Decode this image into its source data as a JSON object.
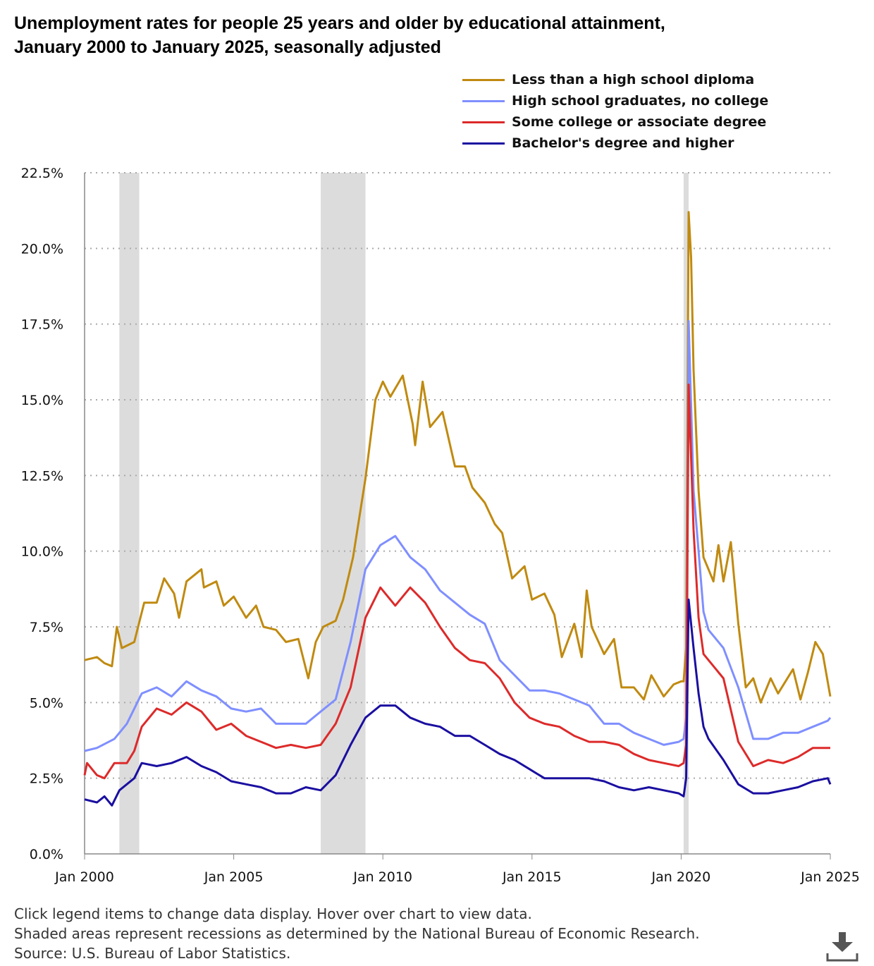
{
  "title_line1": "Unemployment rates for people 25 years and older by educational attainment,",
  "title_line2": "January 2000 to January 2025, seasonally adjusted",
  "notes": [
    "Click legend items to change data display. Hover over chart to view data.",
    "Shaded areas represent recessions as determined by the National Bureau of Economic Research.",
    "Source: U.S. Bureau of Labor Statistics."
  ],
  "download_icon": "download-icon",
  "chart_data": {
    "type": "line",
    "title": "Unemployment rates for people 25 years and older by educational attainment, January 2000 to January 2025, seasonally adjusted",
    "xlabel": "",
    "ylabel": "",
    "xlim": [
      "2000-01",
      "2025-01"
    ],
    "ylim": [
      0,
      22.5
    ],
    "x_ticks": [
      {
        "date": "2000-01",
        "label": "Jan 2000"
      },
      {
        "date": "2005-01",
        "label": "Jan 2005"
      },
      {
        "date": "2010-01",
        "label": "Jan 2010"
      },
      {
        "date": "2015-01",
        "label": "Jan 2015"
      },
      {
        "date": "2020-01",
        "label": "Jan 2020"
      },
      {
        "date": "2025-01",
        "label": "Jan 2025"
      }
    ],
    "y_ticks": [
      {
        "value": 0,
        "label": "0.0%"
      },
      {
        "value": 2.5,
        "label": "2.5%"
      },
      {
        "value": 5,
        "label": "5.0%"
      },
      {
        "value": 7.5,
        "label": "7.5%"
      },
      {
        "value": 10,
        "label": "10.0%"
      },
      {
        "value": 12.5,
        "label": "12.5%"
      },
      {
        "value": 15,
        "label": "15.0%"
      },
      {
        "value": 17.5,
        "label": "17.5%"
      },
      {
        "value": 20,
        "label": "20.0%"
      },
      {
        "value": 22.5,
        "label": "22.5%"
      }
    ],
    "grid": "horizontal dotted",
    "legend_position": "top-right",
    "recessions": [
      {
        "start": "2001-03",
        "end": "2001-11"
      },
      {
        "start": "2007-12",
        "end": "2009-06"
      },
      {
        "start": "2020-02",
        "end": "2020-04"
      }
    ],
    "recession_color": "#dcdcdc",
    "series": [
      {
        "name": "Less than a high school diploma",
        "color": "#c08a10",
        "points": [
          [
            "2000-01",
            6.4
          ],
          [
            "2000-06",
            6.5
          ],
          [
            "2000-09",
            6.3
          ],
          [
            "2000-12",
            6.2
          ],
          [
            "2001-02",
            7.5
          ],
          [
            "2001-04",
            6.8
          ],
          [
            "2001-09",
            7.0
          ],
          [
            "2002-01",
            8.3
          ],
          [
            "2002-06",
            8.3
          ],
          [
            "2002-09",
            9.1
          ],
          [
            "2003-01",
            8.6
          ],
          [
            "2003-03",
            7.8
          ],
          [
            "2003-06",
            9.0
          ],
          [
            "2003-12",
            9.4
          ],
          [
            "2004-01",
            8.8
          ],
          [
            "2004-06",
            9.0
          ],
          [
            "2004-09",
            8.2
          ],
          [
            "2005-01",
            8.5
          ],
          [
            "2005-06",
            7.8
          ],
          [
            "2005-10",
            8.2
          ],
          [
            "2006-01",
            7.5
          ],
          [
            "2006-06",
            7.4
          ],
          [
            "2006-10",
            7.0
          ],
          [
            "2007-03",
            7.1
          ],
          [
            "2007-07",
            5.8
          ],
          [
            "2007-10",
            7.0
          ],
          [
            "2008-01",
            7.5
          ],
          [
            "2008-06",
            7.7
          ],
          [
            "2008-09",
            8.4
          ],
          [
            "2009-01",
            9.8
          ],
          [
            "2009-06",
            12.4
          ],
          [
            "2009-10",
            15.0
          ],
          [
            "2010-01",
            15.6
          ],
          [
            "2010-04",
            15.1
          ],
          [
            "2010-09",
            15.8
          ],
          [
            "2011-01",
            14.2
          ],
          [
            "2011-02",
            13.5
          ],
          [
            "2011-05",
            15.6
          ],
          [
            "2011-08",
            14.1
          ],
          [
            "2012-01",
            14.6
          ],
          [
            "2012-06",
            12.8
          ],
          [
            "2012-10",
            12.8
          ],
          [
            "2013-01",
            12.1
          ],
          [
            "2013-06",
            11.6
          ],
          [
            "2013-10",
            10.9
          ],
          [
            "2014-01",
            10.6
          ],
          [
            "2014-05",
            9.1
          ],
          [
            "2014-10",
            9.5
          ],
          [
            "2015-01",
            8.4
          ],
          [
            "2015-06",
            8.6
          ],
          [
            "2015-10",
            7.9
          ],
          [
            "2016-01",
            6.5
          ],
          [
            "2016-06",
            7.6
          ],
          [
            "2016-09",
            6.5
          ],
          [
            "2016-11",
            8.7
          ],
          [
            "2017-01",
            7.5
          ],
          [
            "2017-06",
            6.6
          ],
          [
            "2017-10",
            7.1
          ],
          [
            "2018-01",
            5.5
          ],
          [
            "2018-06",
            5.5
          ],
          [
            "2018-10",
            5.1
          ],
          [
            "2019-01",
            5.9
          ],
          [
            "2019-06",
            5.2
          ],
          [
            "2019-10",
            5.6
          ],
          [
            "2020-01",
            5.7
          ],
          [
            "2020-02",
            5.7
          ],
          [
            "2020-03",
            6.8
          ],
          [
            "2020-04",
            21.2
          ],
          [
            "2020-05",
            19.7
          ],
          [
            "2020-06",
            16.0
          ],
          [
            "2020-08",
            12.0
          ],
          [
            "2020-10",
            9.8
          ],
          [
            "2020-12",
            9.4
          ],
          [
            "2021-02",
            9.0
          ],
          [
            "2021-04",
            10.2
          ],
          [
            "2021-06",
            9.0
          ],
          [
            "2021-09",
            10.3
          ],
          [
            "2021-12",
            7.6
          ],
          [
            "2022-03",
            5.5
          ],
          [
            "2022-06",
            5.8
          ],
          [
            "2022-09",
            5.0
          ],
          [
            "2023-01",
            5.8
          ],
          [
            "2023-04",
            5.3
          ],
          [
            "2023-07",
            5.7
          ],
          [
            "2023-10",
            6.1
          ],
          [
            "2024-01",
            5.1
          ],
          [
            "2024-04",
            6.0
          ],
          [
            "2024-07",
            7.0
          ],
          [
            "2024-10",
            6.6
          ],
          [
            "2025-01",
            5.2
          ]
        ]
      },
      {
        "name": "High school graduates, no college",
        "color": "#7f8fff",
        "points": [
          [
            "2000-01",
            3.4
          ],
          [
            "2000-06",
            3.5
          ],
          [
            "2001-01",
            3.8
          ],
          [
            "2001-06",
            4.3
          ],
          [
            "2001-12",
            5.3
          ],
          [
            "2002-06",
            5.5
          ],
          [
            "2002-12",
            5.2
          ],
          [
            "2003-06",
            5.7
          ],
          [
            "2003-12",
            5.4
          ],
          [
            "2004-06",
            5.2
          ],
          [
            "2004-12",
            4.8
          ],
          [
            "2005-06",
            4.7
          ],
          [
            "2005-12",
            4.8
          ],
          [
            "2006-06",
            4.3
          ],
          [
            "2006-12",
            4.3
          ],
          [
            "2007-06",
            4.3
          ],
          [
            "2007-12",
            4.7
          ],
          [
            "2008-06",
            5.1
          ],
          [
            "2008-12",
            7.0
          ],
          [
            "2009-06",
            9.4
          ],
          [
            "2009-12",
            10.2
          ],
          [
            "2010-06",
            10.5
          ],
          [
            "2010-12",
            9.8
          ],
          [
            "2011-06",
            9.4
          ],
          [
            "2011-12",
            8.7
          ],
          [
            "2012-06",
            8.3
          ],
          [
            "2012-12",
            7.9
          ],
          [
            "2013-06",
            7.6
          ],
          [
            "2013-12",
            6.4
          ],
          [
            "2014-06",
            5.9
          ],
          [
            "2014-12",
            5.4
          ],
          [
            "2015-06",
            5.4
          ],
          [
            "2015-12",
            5.3
          ],
          [
            "2016-06",
            5.1
          ],
          [
            "2016-12",
            4.9
          ],
          [
            "2017-06",
            4.3
          ],
          [
            "2017-12",
            4.3
          ],
          [
            "2018-06",
            4.0
          ],
          [
            "2018-12",
            3.8
          ],
          [
            "2019-06",
            3.6
          ],
          [
            "2019-12",
            3.7
          ],
          [
            "2020-02",
            3.8
          ],
          [
            "2020-03",
            4.5
          ],
          [
            "2020-04",
            17.6
          ],
          [
            "2020-06",
            12.0
          ],
          [
            "2020-08",
            10.0
          ],
          [
            "2020-10",
            8.0
          ],
          [
            "2020-12",
            7.4
          ],
          [
            "2021-06",
            6.8
          ],
          [
            "2021-12",
            5.5
          ],
          [
            "2022-06",
            3.8
          ],
          [
            "2022-12",
            3.8
          ],
          [
            "2023-06",
            4.0
          ],
          [
            "2023-12",
            4.0
          ],
          [
            "2024-06",
            4.2
          ],
          [
            "2024-12",
            4.4
          ],
          [
            "2025-01",
            4.5
          ]
        ]
      },
      {
        "name": "Some college or associate degree",
        "color": "#dd2a2a",
        "points": [
          [
            "2000-01",
            2.6
          ],
          [
            "2000-02",
            3.0
          ],
          [
            "2000-06",
            2.6
          ],
          [
            "2000-09",
            2.5
          ],
          [
            "2001-01",
            3.0
          ],
          [
            "2001-06",
            3.0
          ],
          [
            "2001-09",
            3.4
          ],
          [
            "2001-12",
            4.2
          ],
          [
            "2002-06",
            4.8
          ],
          [
            "2002-12",
            4.6
          ],
          [
            "2003-06",
            5.0
          ],
          [
            "2003-12",
            4.7
          ],
          [
            "2004-06",
            4.1
          ],
          [
            "2004-12",
            4.3
          ],
          [
            "2005-06",
            3.9
          ],
          [
            "2005-12",
            3.7
          ],
          [
            "2006-06",
            3.5
          ],
          [
            "2006-12",
            3.6
          ],
          [
            "2007-06",
            3.5
          ],
          [
            "2007-12",
            3.6
          ],
          [
            "2008-06",
            4.3
          ],
          [
            "2008-12",
            5.5
          ],
          [
            "2009-06",
            7.8
          ],
          [
            "2009-12",
            8.8
          ],
          [
            "2010-06",
            8.2
          ],
          [
            "2010-12",
            8.8
          ],
          [
            "2011-06",
            8.3
          ],
          [
            "2011-12",
            7.5
          ],
          [
            "2012-06",
            6.8
          ],
          [
            "2012-12",
            6.4
          ],
          [
            "2013-06",
            6.3
          ],
          [
            "2013-12",
            5.8
          ],
          [
            "2014-06",
            5.0
          ],
          [
            "2014-12",
            4.5
          ],
          [
            "2015-06",
            4.3
          ],
          [
            "2015-12",
            4.2
          ],
          [
            "2016-06",
            3.9
          ],
          [
            "2016-12",
            3.7
          ],
          [
            "2017-06",
            3.7
          ],
          [
            "2017-12",
            3.6
          ],
          [
            "2018-06",
            3.3
          ],
          [
            "2018-12",
            3.1
          ],
          [
            "2019-06",
            3.0
          ],
          [
            "2019-12",
            2.9
          ],
          [
            "2020-02",
            3.0
          ],
          [
            "2020-03",
            3.6
          ],
          [
            "2020-04",
            15.5
          ],
          [
            "2020-06",
            10.7
          ],
          [
            "2020-08",
            7.8
          ],
          [
            "2020-10",
            6.6
          ],
          [
            "2020-12",
            6.4
          ],
          [
            "2021-06",
            5.8
          ],
          [
            "2021-12",
            3.7
          ],
          [
            "2022-06",
            2.9
          ],
          [
            "2022-12",
            3.1
          ],
          [
            "2023-06",
            3.0
          ],
          [
            "2023-12",
            3.2
          ],
          [
            "2024-06",
            3.5
          ],
          [
            "2024-12",
            3.5
          ],
          [
            "2025-01",
            3.5
          ]
        ]
      },
      {
        "name": "Bachelor's degree and higher",
        "color": "#1a0fa0",
        "points": [
          [
            "2000-01",
            1.8
          ],
          [
            "2000-06",
            1.7
          ],
          [
            "2000-09",
            1.9
          ],
          [
            "2000-12",
            1.6
          ],
          [
            "2001-03",
            2.1
          ],
          [
            "2001-09",
            2.5
          ],
          [
            "2001-12",
            3.0
          ],
          [
            "2002-06",
            2.9
          ],
          [
            "2002-12",
            3.0
          ],
          [
            "2003-06",
            3.2
          ],
          [
            "2003-12",
            2.9
          ],
          [
            "2004-06",
            2.7
          ],
          [
            "2004-12",
            2.4
          ],
          [
            "2005-06",
            2.3
          ],
          [
            "2005-12",
            2.2
          ],
          [
            "2006-06",
            2.0
          ],
          [
            "2006-12",
            2.0
          ],
          [
            "2007-06",
            2.2
          ],
          [
            "2007-12",
            2.1
          ],
          [
            "2008-06",
            2.6
          ],
          [
            "2008-12",
            3.6
          ],
          [
            "2009-06",
            4.5
          ],
          [
            "2009-12",
            4.9
          ],
          [
            "2010-06",
            4.9
          ],
          [
            "2010-12",
            4.5
          ],
          [
            "2011-06",
            4.3
          ],
          [
            "2011-12",
            4.2
          ],
          [
            "2012-06",
            3.9
          ],
          [
            "2012-12",
            3.9
          ],
          [
            "2013-06",
            3.6
          ],
          [
            "2013-12",
            3.3
          ],
          [
            "2014-06",
            3.1
          ],
          [
            "2014-12",
            2.8
          ],
          [
            "2015-06",
            2.5
          ],
          [
            "2015-12",
            2.5
          ],
          [
            "2016-06",
            2.5
          ],
          [
            "2016-12",
            2.5
          ],
          [
            "2017-06",
            2.4
          ],
          [
            "2017-12",
            2.2
          ],
          [
            "2018-06",
            2.1
          ],
          [
            "2018-12",
            2.2
          ],
          [
            "2019-06",
            2.1
          ],
          [
            "2019-12",
            2.0
          ],
          [
            "2020-02",
            1.9
          ],
          [
            "2020-03",
            2.5
          ],
          [
            "2020-04",
            8.4
          ],
          [
            "2020-06",
            6.8
          ],
          [
            "2020-08",
            5.3
          ],
          [
            "2020-10",
            4.2
          ],
          [
            "2020-12",
            3.8
          ],
          [
            "2021-06",
            3.1
          ],
          [
            "2021-12",
            2.3
          ],
          [
            "2022-06",
            2.0
          ],
          [
            "2022-12",
            2.0
          ],
          [
            "2023-06",
            2.1
          ],
          [
            "2023-12",
            2.2
          ],
          [
            "2024-06",
            2.4
          ],
          [
            "2024-12",
            2.5
          ],
          [
            "2025-01",
            2.3
          ]
        ]
      }
    ]
  }
}
